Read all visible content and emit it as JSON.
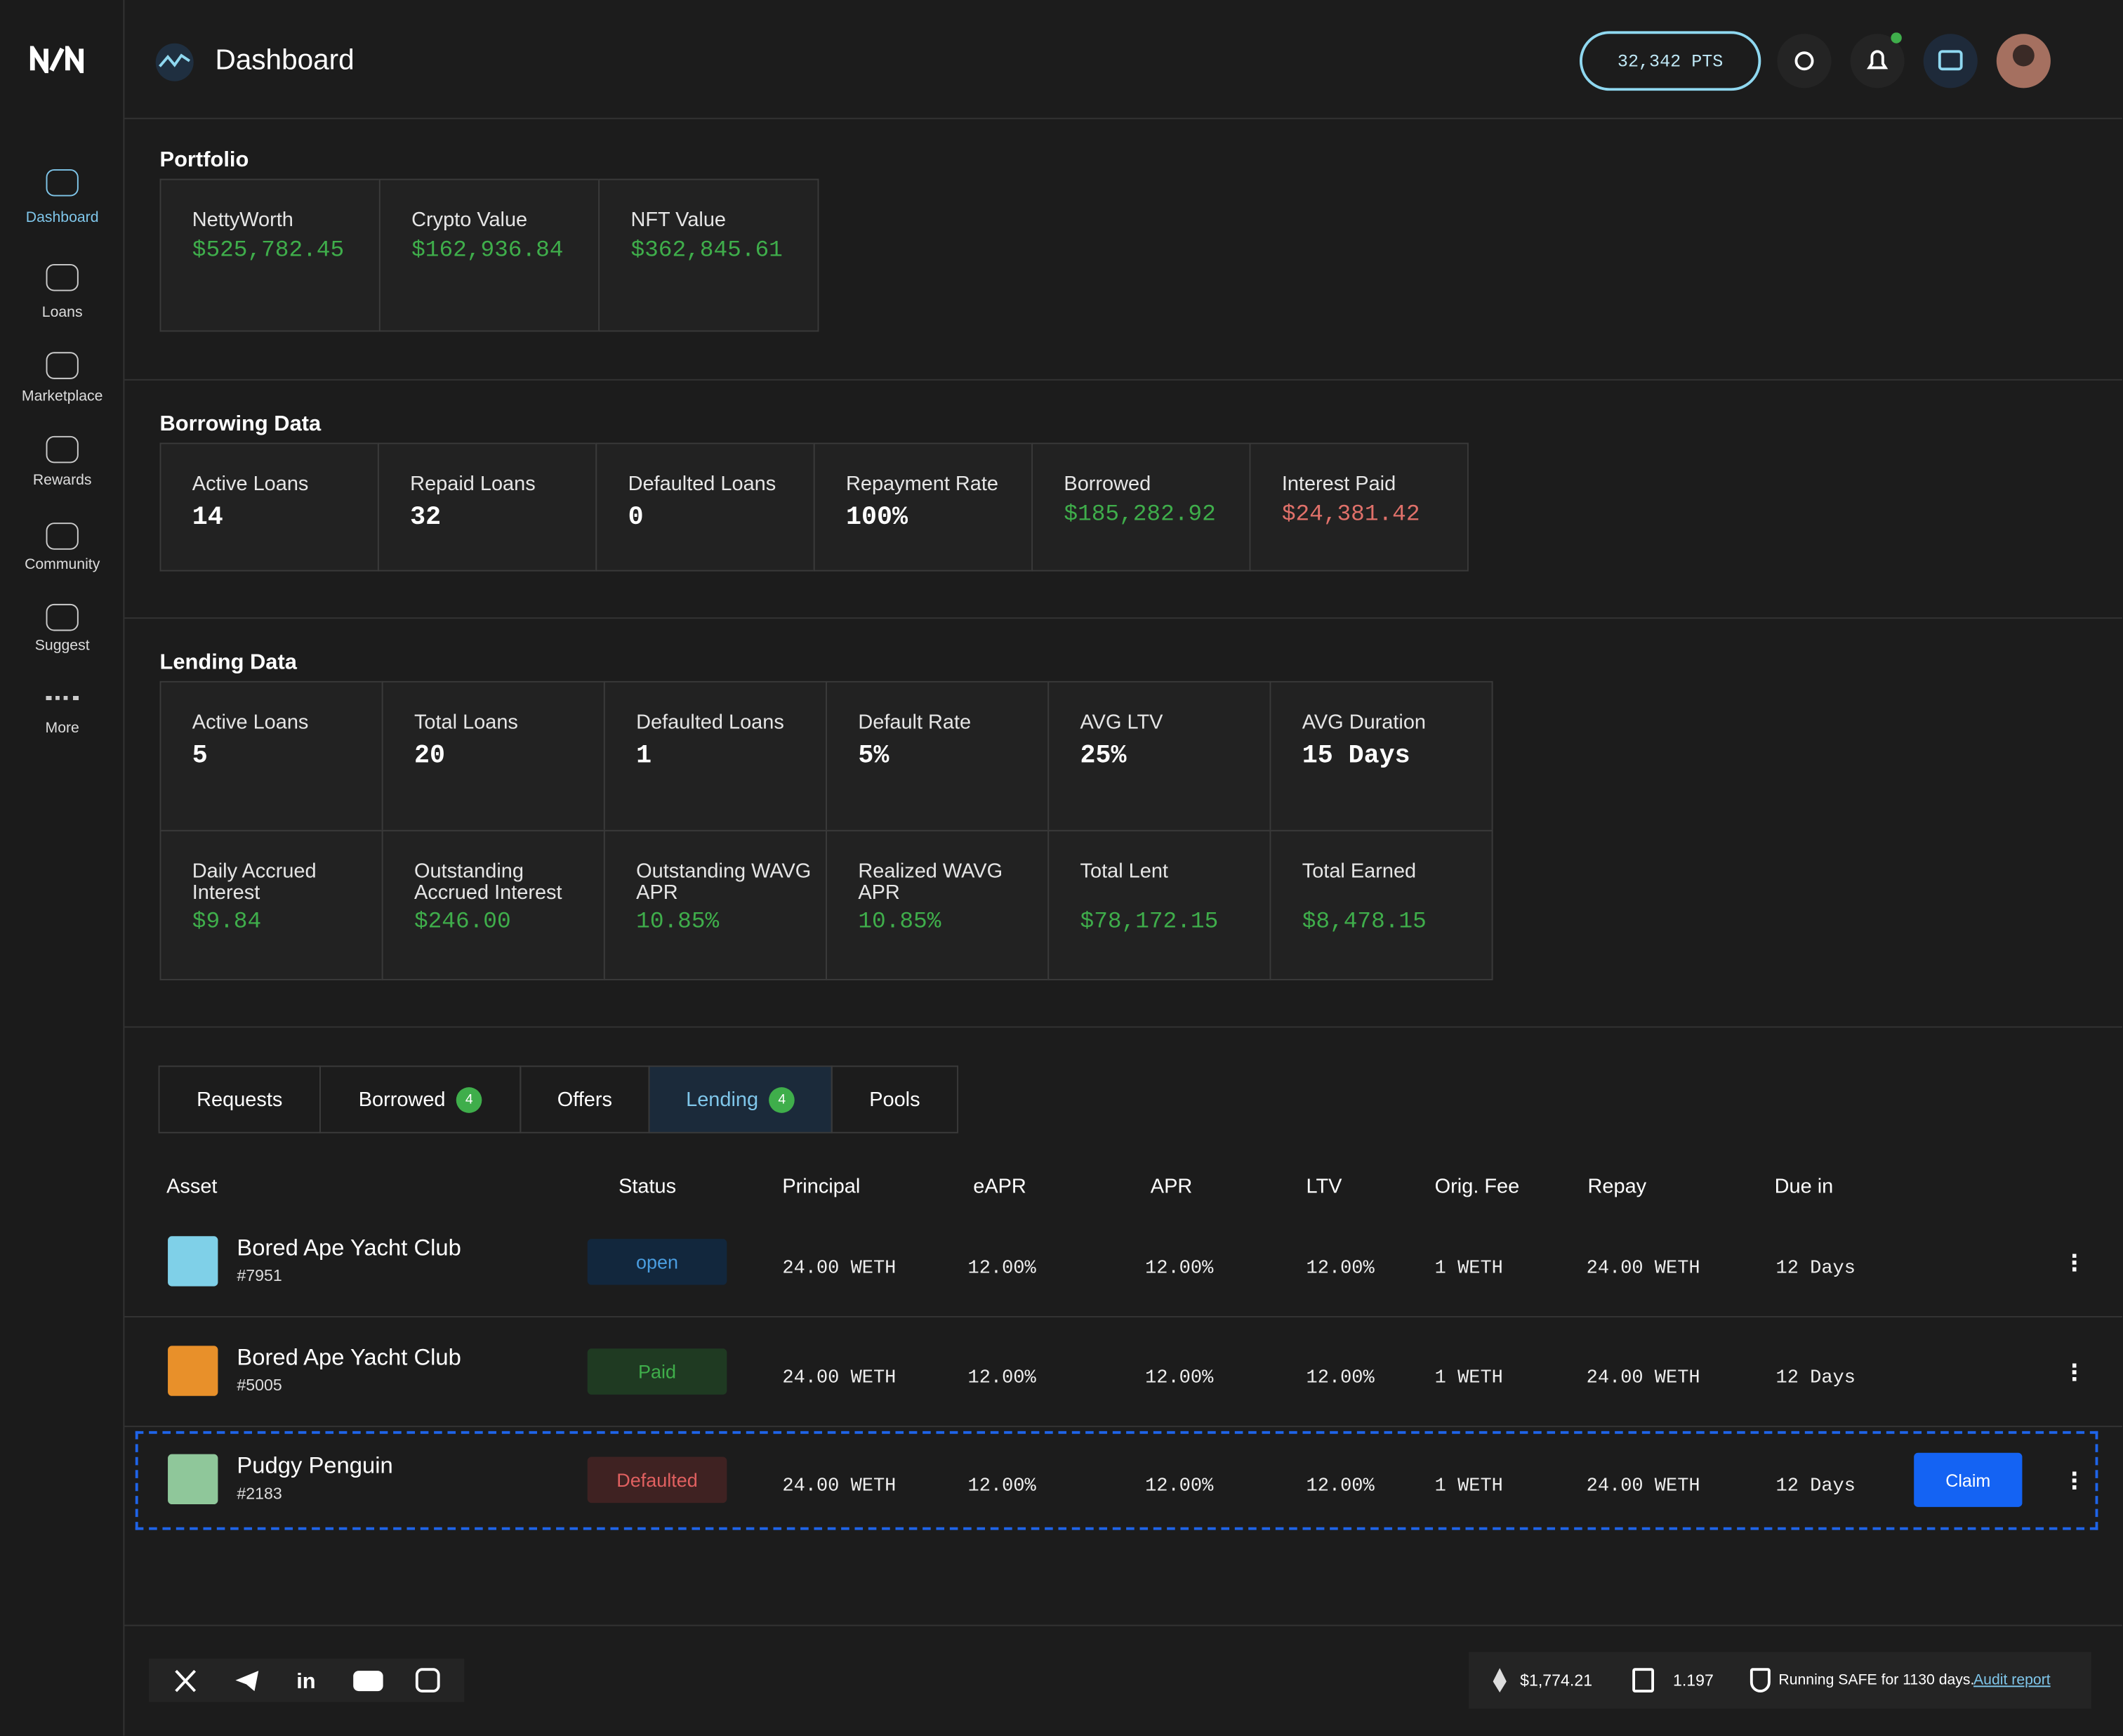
{
  "header": {
    "title": "Dashboard",
    "points": "32,342 PTS"
  },
  "nav": [
    "Dashboard",
    "Loans",
    "Marketplace",
    "Rewards",
    "Community",
    "Suggest",
    "More"
  ],
  "portfolio": {
    "title": "Portfolio",
    "cards": [
      {
        "label": "NettyWorth",
        "value": "$525,782.45"
      },
      {
        "label": "Crypto Value",
        "value": "$162,936.84"
      },
      {
        "label": "NFT Value",
        "value": "$362,845.61"
      }
    ]
  },
  "borrowing": {
    "title": "Borrowing Data",
    "cards": [
      {
        "label": "Active Loans",
        "value": "14"
      },
      {
        "label": "Repaid Loans",
        "value": "32"
      },
      {
        "label": "Defaulted Loans",
        "value": "0"
      },
      {
        "label": "Repayment Rate",
        "value": "100%"
      },
      {
        "label": "Borrowed",
        "value": "$185,282.92"
      },
      {
        "label": "Interest Paid",
        "value": "$24,381.42"
      }
    ]
  },
  "lending": {
    "title": "Lending Data",
    "cards": [
      {
        "label": "Active Loans",
        "value": "5"
      },
      {
        "label": "Total Loans",
        "value": "20"
      },
      {
        "label": "Defaulted Loans",
        "value": "1"
      },
      {
        "label": "Default Rate",
        "value": "5%"
      },
      {
        "label": "AVG LTV",
        "value": "25%"
      },
      {
        "label": "AVG Duration",
        "value": "15 Days"
      },
      {
        "label": "Daily Accrued Interest",
        "value": "$9.84"
      },
      {
        "label": "Outstanding Accrued Interest",
        "value": "$246.00"
      },
      {
        "label": "Outstanding WAVG APR",
        "value": "10.85%"
      },
      {
        "label": "Realized WAVG APR",
        "value": "10.85%"
      },
      {
        "label": "Total Lent",
        "value": "$78,172.15"
      },
      {
        "label": "Total Earned",
        "value": "$8,478.15"
      }
    ]
  },
  "tabs": [
    {
      "label": "Requests"
    },
    {
      "label": "Borrowed",
      "badge": "4"
    },
    {
      "label": "Offers"
    },
    {
      "label": "Lending",
      "badge": "4"
    },
    {
      "label": "Pools"
    }
  ],
  "table": {
    "columns": [
      "Asset",
      "Status",
      "Principal",
      "eAPR",
      "APR",
      "LTV",
      "Orig. Fee",
      "Repay",
      "Due in"
    ],
    "rows": [
      {
        "asset": "Bored Ape Yacht Club",
        "id": "#7951",
        "status": "open",
        "principal": "24.00 WETH",
        "eapr": "12.00%",
        "apr": "12.00%",
        "ltv": "12.00%",
        "fee": "1 WETH",
        "repay": "24.00 WETH",
        "due": "12 Days"
      },
      {
        "asset": "Bored Ape Yacht Club",
        "id": "#5005",
        "status": "Paid",
        "principal": "24.00 WETH",
        "eapr": "12.00%",
        "apr": "12.00%",
        "ltv": "12.00%",
        "fee": "1 WETH",
        "repay": "24.00 WETH",
        "due": "12 Days"
      },
      {
        "asset": "Pudgy Penguin",
        "id": "#2183",
        "status": "Defaulted",
        "principal": "24.00 WETH",
        "eapr": "12.00%",
        "apr": "12.00%",
        "ltv": "12.00%",
        "fee": "1 WETH",
        "repay": "24.00 WETH",
        "due": "12 Days",
        "action": "Claim"
      }
    ]
  },
  "footer": {
    "eth_price": "$1,774.21",
    "gas": "1.197",
    "safe": "Running SAFE for 1130 days.",
    "audit": "Audit report"
  }
}
